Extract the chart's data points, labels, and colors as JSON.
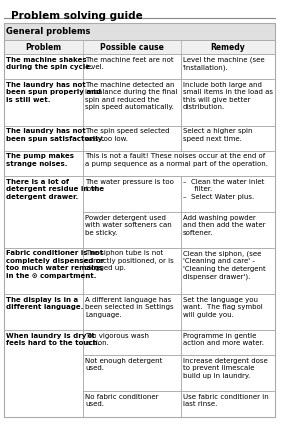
{
  "title": "Problem solving guide",
  "section_header": "General problems",
  "col_headers": [
    "Problem",
    "Possible cause",
    "Remedy"
  ],
  "background_color": "#ffffff",
  "border_color": "#aaaaaa",
  "rows": [
    {
      "problem": "The machine shakes\nduring the spin cycle.",
      "cause": "The machine feet are not\nlevel.",
      "remedy": "Level the machine (see\n'Installation).",
      "merged_cause_remedy": false
    },
    {
      "problem": "The laundry has not\nbeen spun properly and\nis still wet.",
      "cause": "The machine detected an\nimbalance during the final\nspin and reduced the\nspin speed automatically.",
      "remedy": "Include both large and\nsmall items in the load as\nthis will give better\ndistribution.",
      "merged_cause_remedy": false
    },
    {
      "problem": "The laundry has not\nbeen spun satisfactorily.",
      "cause": "The spin speed selected\nwas too low.",
      "remedy": "Select a higher spin\nspeed next time.",
      "merged_cause_remedy": false
    },
    {
      "problem": "The pump makes\nstrange noises.",
      "cause": "This is not a fault! These noises occur at the end of\na pump sequence as a normal part of the operation.",
      "remedy": "",
      "merged_cause_remedy": true
    },
    {
      "problem": "There is a lot of\ndetergent residue in the\ndetergent drawer.",
      "cause": "The water pressure is too\nlow.",
      "remedy": "–  Clean the water inlet\n     filter.\n–  Select Water plus.",
      "merged_cause_remedy": false
    },
    {
      "problem": "",
      "cause": "Powder detergent used\nwith water softeners can\nbe sticky.",
      "remedy": "Add washing powder\nand then add the water\nsoftener.",
      "merged_cause_remedy": false
    },
    {
      "problem": "Fabric conditioner is not\ncompletely dispensed or\ntoo much water remains\nin the ⊙ compartment.",
      "cause": "The siphon tube is not\ncorrectly positioned, or is\nclogged up.",
      "remedy": "Clean the siphon, (see\n'Cleaning and care' -\n'Cleaning the detergent\ndispenser drawer').",
      "merged_cause_remedy": false
    },
    {
      "problem": "The display is in a\ndifferent language.",
      "cause": "A different language has\nbeen selected in Settings\nLanguage.",
      "remedy": "Set the language you\nwant.  The flag symbol\nwill guide you.",
      "merged_cause_remedy": false
    },
    {
      "problem": "When laundry is dry it\nfeels hard to the touch.",
      "cause": "Too vigorous wash\naction.",
      "remedy": "Programme in gentle\naction and more water.",
      "merged_cause_remedy": false
    },
    {
      "problem": "",
      "cause": "Not enough detergent\nused.",
      "remedy": "Increase detergent dose\nto prevent limescale\nbuild up in laundry.",
      "merged_cause_remedy": false
    },
    {
      "problem": "",
      "cause": "No fabric conditioner\nused.",
      "remedy": "Use fabric conditioner in\nlast rinse.",
      "merged_cause_remedy": false
    }
  ]
}
